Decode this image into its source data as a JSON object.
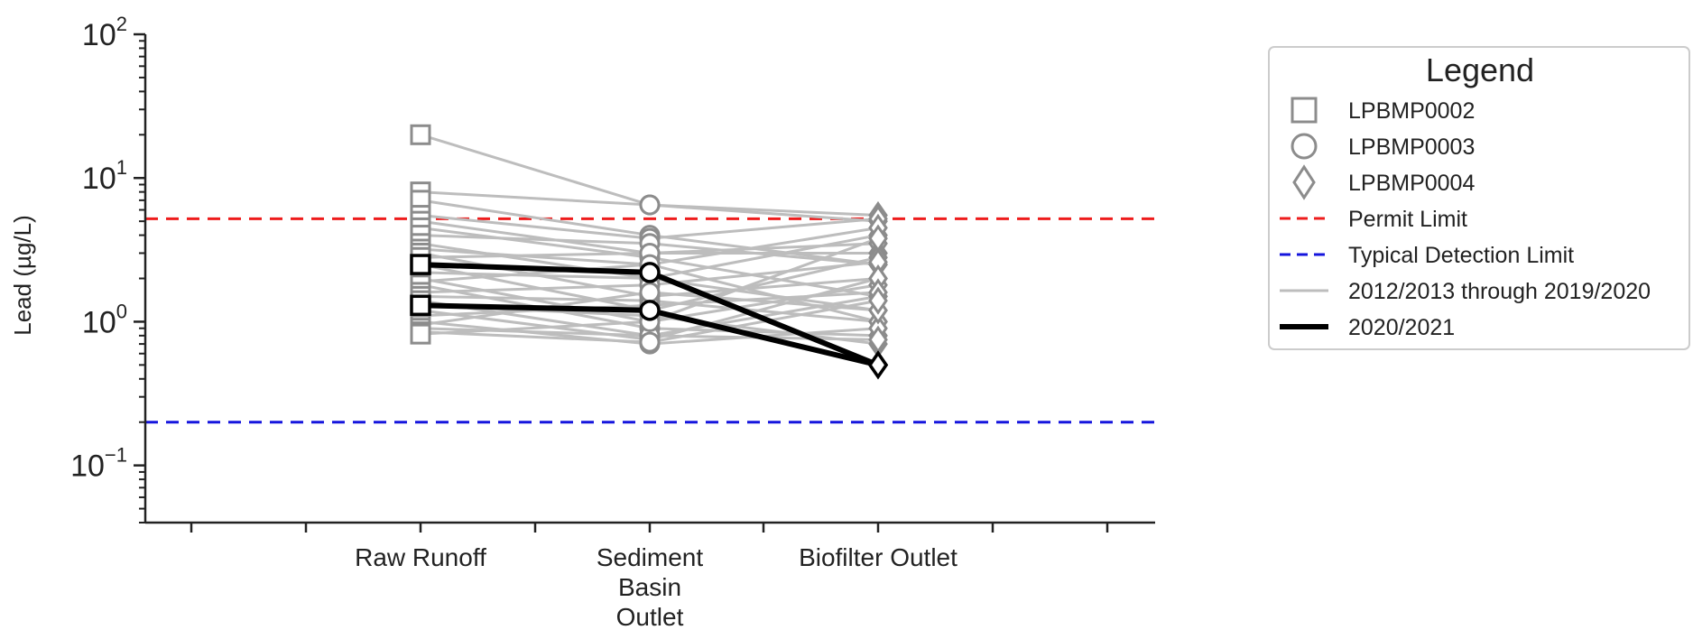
{
  "chart_data": {
    "type": "line",
    "title": "",
    "xlabel": "",
    "ylabel": "Lead (µg/L)",
    "yscale": "log",
    "ylim": [
      0.04,
      100
    ],
    "y_ticks": [
      {
        "value": 100,
        "base": "10",
        "exp": "2"
      },
      {
        "value": 10,
        "base": "10",
        "exp": "1"
      },
      {
        "value": 1,
        "base": "10",
        "exp": "0"
      },
      {
        "value": 0.1,
        "base": "10",
        "exp": "−1"
      }
    ],
    "categories": [
      "Raw Runoff",
      "Sediment Basin Outlet",
      "Biofilter Outlet"
    ],
    "category_label_lines": [
      [
        "Raw Runoff"
      ],
      [
        "Sediment",
        "Basin",
        "Outlet"
      ],
      [
        "Biofilter Outlet"
      ]
    ],
    "reference_lines": [
      {
        "name": "Permit Limit",
        "value": 5.2,
        "color": "#ee1c1c",
        "style": "dashed"
      },
      {
        "name": "Typical Detection Limit",
        "value": 0.2,
        "color": "#1515dd",
        "style": "dashed"
      }
    ],
    "historical_color": "#bdbdbd",
    "current_color": "#000000",
    "marker_color": "#8c8c8c",
    "historical_series": [
      {
        "values": [
          20,
          6.5,
          5.0
        ]
      },
      {
        "values": [
          8.0,
          6.5,
          5.5
        ]
      },
      {
        "values": [
          7.0,
          4.0,
          2.5
        ]
      },
      {
        "values": [
          5.5,
          3.8,
          5.2
        ]
      },
      {
        "values": [
          5.0,
          3.0,
          3.5
        ]
      },
      {
        "values": [
          4.5,
          2.8,
          1.5
        ]
      },
      {
        "values": [
          4.0,
          3.5,
          2.5
        ]
      },
      {
        "values": [
          3.5,
          2.0,
          4.0
        ]
      },
      {
        "values": [
          3.2,
          2.5,
          1.0
        ]
      },
      {
        "values": [
          3.0,
          1.5,
          2.0
        ]
      },
      {
        "values": [
          2.8,
          3.0,
          3.0
        ]
      },
      {
        "values": [
          2.5,
          1.2,
          2.8
        ]
      },
      {
        "values": [
          2.2,
          2.0,
          1.2
        ]
      },
      {
        "values": [
          2.0,
          1.0,
          1.8
        ]
      },
      {
        "values": [
          1.9,
          2.5,
          4.5
        ]
      },
      {
        "values": [
          1.8,
          0.9,
          0.8
        ]
      },
      {
        "values": [
          1.6,
          1.8,
          2.6
        ]
      },
      {
        "values": [
          1.5,
          1.4,
          1.0
        ]
      },
      {
        "values": [
          1.4,
          0.8,
          1.5
        ]
      },
      {
        "values": [
          1.3,
          1.1,
          0.7
        ]
      },
      {
        "values": [
          1.2,
          0.75,
          2.0
        ]
      },
      {
        "values": [
          1.1,
          1.3,
          1.6
        ]
      },
      {
        "values": [
          1.0,
          0.7,
          0.9
        ]
      },
      {
        "values": [
          0.95,
          1.6,
          1.2
        ]
      },
      {
        "values": [
          0.9,
          0.8,
          0.75
        ]
      },
      {
        "values": [
          0.85,
          0.72,
          1.4
        ]
      },
      {
        "values": [
          0.82,
          1.0,
          3.8
        ]
      }
    ],
    "current_series": [
      {
        "values": [
          2.5,
          2.2,
          0.5
        ]
      },
      {
        "values": [
          1.3,
          1.2,
          0.5
        ]
      }
    ]
  },
  "legend": {
    "title": "Legend",
    "items": [
      {
        "label": "LPBMP0002",
        "kind": "square"
      },
      {
        "label": "LPBMP0003",
        "kind": "circle"
      },
      {
        "label": "LPBMP0004",
        "kind": "diamond"
      },
      {
        "label": "Permit Limit",
        "kind": "dashed-red"
      },
      {
        "label": "Typical Detection Limit",
        "kind": "dashed-blue"
      },
      {
        "label": "2012/2013 through 2019/2020",
        "kind": "gray-line"
      },
      {
        "label": "2020/2021",
        "kind": "black-line"
      }
    ]
  }
}
